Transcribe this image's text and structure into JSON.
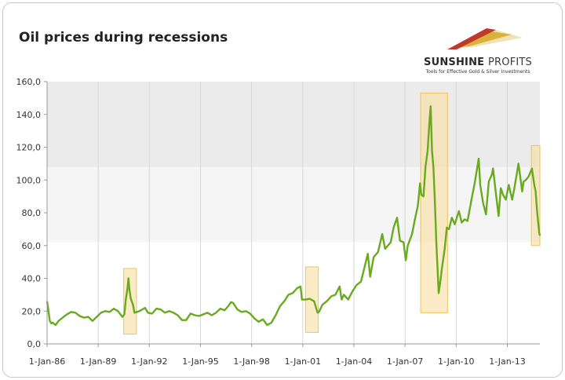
{
  "brand": {
    "name_bold": "SUNSHINE",
    "name_thin": "PROFITS",
    "tagline": "Tools for Effective Gold & Silver Investments",
    "colors": {
      "red": "#c0392b",
      "gold": "#d4a017",
      "ivory": "#efe2b8"
    }
  },
  "chart_data": {
    "type": "line",
    "title": "Oil prices during recessions",
    "xlabel": "",
    "ylabel": "",
    "x_start": "1986-01-01",
    "x_end": "2014-11-30",
    "ylim": [
      0,
      160
    ],
    "yticks": [
      0,
      20,
      40,
      60,
      80,
      100,
      120,
      140,
      160
    ],
    "ytick_labels": [
      "0,0",
      "20,0",
      "40,0",
      "60,0",
      "80,0",
      "100,0",
      "120,0",
      "140,0",
      "160,0"
    ],
    "xtick_labels": [
      "1-Jan-86",
      "1-Jan-89",
      "1-Jan-92",
      "1-Jan-95",
      "1-Jan-98",
      "1-Jan-01",
      "1-Jan-04",
      "1-Jan-07",
      "1-Jan-10",
      "1-Jan-13"
    ],
    "xtick_dates": [
      "1986-01-01",
      "1989-01-01",
      "1992-01-01",
      "1995-01-01",
      "1998-01-01",
      "2001-01-01",
      "2004-01-01",
      "2007-01-01",
      "2010-01-01",
      "2013-01-01"
    ],
    "grid": "vertical",
    "series": [
      {
        "color": "#6aaa1e",
        "points": [
          [
            "1986-01-01",
            26
          ],
          [
            "1986-02-01",
            20
          ],
          [
            "1986-03-01",
            14
          ],
          [
            "1986-04-01",
            12.5
          ],
          [
            "1986-05-01",
            13
          ],
          [
            "1986-07-01",
            11.5
          ],
          [
            "1986-09-01",
            14
          ],
          [
            "1986-12-01",
            16
          ],
          [
            "1987-03-01",
            18
          ],
          [
            "1987-06-01",
            19.5
          ],
          [
            "1987-09-01",
            19
          ],
          [
            "1987-12-01",
            17
          ],
          [
            "1988-03-01",
            16
          ],
          [
            "1988-06-01",
            16.5
          ],
          [
            "1988-09-01",
            14
          ],
          [
            "1988-12-01",
            16.5
          ],
          [
            "1989-03-01",
            19
          ],
          [
            "1989-06-01",
            20
          ],
          [
            "1989-09-01",
            19.5
          ],
          [
            "1989-12-01",
            21.5
          ],
          [
            "1990-03-01",
            20
          ],
          [
            "1990-06-01",
            16.5
          ],
          [
            "1990-07-15",
            18
          ],
          [
            "1990-08-15",
            27
          ],
          [
            "1990-09-15",
            33
          ],
          [
            "1990-10-10",
            40
          ],
          [
            "1990-11-01",
            33
          ],
          [
            "1990-12-01",
            27.5
          ],
          [
            "1991-01-15",
            24
          ],
          [
            "1991-02-15",
            19
          ],
          [
            "1991-06-01",
            20
          ],
          [
            "1991-10-01",
            22
          ],
          [
            "1991-12-01",
            19
          ],
          [
            "1992-03-01",
            18.5
          ],
          [
            "1992-06-01",
            21.5
          ],
          [
            "1992-09-01",
            21
          ],
          [
            "1992-12-01",
            19
          ],
          [
            "1993-03-01",
            20
          ],
          [
            "1993-06-01",
            19
          ],
          [
            "1993-09-01",
            17.5
          ],
          [
            "1993-12-01",
            14.5
          ],
          [
            "1994-03-01",
            14.5
          ],
          [
            "1994-06-01",
            18.5
          ],
          [
            "1994-09-01",
            17.5
          ],
          [
            "1994-12-01",
            17
          ],
          [
            "1995-03-01",
            18
          ],
          [
            "1995-06-01",
            19
          ],
          [
            "1995-09-01",
            17.5
          ],
          [
            "1995-12-01",
            19
          ],
          [
            "1996-03-01",
            21.5
          ],
          [
            "1996-06-01",
            20.5
          ],
          [
            "1996-09-01",
            23.5
          ],
          [
            "1996-10-15",
            25.5
          ],
          [
            "1996-12-01",
            25
          ],
          [
            "1997-03-01",
            21
          ],
          [
            "1997-06-01",
            19.5
          ],
          [
            "1997-09-01",
            20
          ],
          [
            "1997-12-01",
            18.5
          ],
          [
            "1998-03-01",
            15.5
          ],
          [
            "1998-06-01",
            13.5
          ],
          [
            "1998-09-01",
            15
          ],
          [
            "1998-12-01",
            11.5
          ],
          [
            "1999-03-01",
            13
          ],
          [
            "1999-06-01",
            17.5
          ],
          [
            "1999-09-01",
            23
          ],
          [
            "1999-12-01",
            26
          ],
          [
            "2000-03-01",
            30
          ],
          [
            "2000-06-01",
            31
          ],
          [
            "2000-09-01",
            34
          ],
          [
            "2000-11-15",
            35
          ],
          [
            "2000-12-15",
            27
          ],
          [
            "2001-03-01",
            27
          ],
          [
            "2001-06-01",
            27.5
          ],
          [
            "2001-09-01",
            26
          ],
          [
            "2001-11-15",
            19
          ],
          [
            "2001-12-15",
            19.5
          ],
          [
            "2002-03-01",
            24
          ],
          [
            "2002-06-01",
            26
          ],
          [
            "2002-09-01",
            29
          ],
          [
            "2002-12-01",
            30
          ],
          [
            "2003-03-01",
            35
          ],
          [
            "2003-04-15",
            27
          ],
          [
            "2003-06-01",
            30
          ],
          [
            "2003-09-01",
            27
          ],
          [
            "2003-12-01",
            32
          ],
          [
            "2004-03-01",
            36
          ],
          [
            "2004-06-01",
            38
          ],
          [
            "2004-08-01",
            45
          ],
          [
            "2004-10-25",
            55
          ],
          [
            "2004-12-15",
            41
          ],
          [
            "2005-03-01",
            53
          ],
          [
            "2005-06-01",
            56
          ],
          [
            "2005-08-30",
            67
          ],
          [
            "2005-11-01",
            58
          ],
          [
            "2005-12-01",
            59
          ],
          [
            "2006-03-01",
            62
          ],
          [
            "2006-05-01",
            71
          ],
          [
            "2006-07-15",
            77
          ],
          [
            "2006-09-15",
            63
          ],
          [
            "2006-12-01",
            62
          ],
          [
            "2007-01-18",
            51
          ],
          [
            "2007-03-01",
            60
          ],
          [
            "2007-06-01",
            67
          ],
          [
            "2007-08-01",
            76
          ],
          [
            "2007-10-01",
            84
          ],
          [
            "2007-11-20",
            98
          ],
          [
            "2007-12-15",
            91
          ],
          [
            "2008-02-01",
            90
          ],
          [
            "2008-03-15",
            108
          ],
          [
            "2008-05-01",
            118
          ],
          [
            "2008-06-01",
            133
          ],
          [
            "2008-07-03",
            145
          ],
          [
            "2008-08-01",
            118
          ],
          [
            "2008-09-01",
            108
          ],
          [
            "2008-10-01",
            88
          ],
          [
            "2008-11-01",
            62
          ],
          [
            "2008-12-01",
            44
          ],
          [
            "2008-12-22",
            31
          ],
          [
            "2009-02-01",
            39
          ],
          [
            "2009-03-01",
            46
          ],
          [
            "2009-05-01",
            58
          ],
          [
            "2009-06-15",
            71
          ],
          [
            "2009-08-01",
            70
          ],
          [
            "2009-10-01",
            77
          ],
          [
            "2009-12-01",
            73
          ],
          [
            "2010-03-01",
            81
          ],
          [
            "2010-05-01",
            74
          ],
          [
            "2010-07-01",
            76
          ],
          [
            "2010-09-01",
            75
          ],
          [
            "2010-12-01",
            89
          ],
          [
            "2011-02-01",
            98
          ],
          [
            "2011-04-29",
            113
          ],
          [
            "2011-06-01",
            97
          ],
          [
            "2011-08-01",
            86
          ],
          [
            "2011-10-01",
            79
          ],
          [
            "2011-12-01",
            99
          ],
          [
            "2012-02-01",
            103
          ],
          [
            "2012-03-01",
            107
          ],
          [
            "2012-05-01",
            92
          ],
          [
            "2012-06-28",
            78
          ],
          [
            "2012-08-15",
            95
          ],
          [
            "2012-10-01",
            91
          ],
          [
            "2012-12-01",
            88
          ],
          [
            "2013-02-01",
            97
          ],
          [
            "2013-04-15",
            88
          ],
          [
            "2013-06-01",
            95
          ],
          [
            "2013-08-28",
            110
          ],
          [
            "2013-10-01",
            103
          ],
          [
            "2013-11-15",
            93
          ],
          [
            "2013-12-15",
            99
          ],
          [
            "2014-02-01",
            100
          ],
          [
            "2014-04-01",
            102
          ],
          [
            "2014-06-13",
            107
          ],
          [
            "2014-08-01",
            97
          ],
          [
            "2014-09-01",
            93
          ],
          [
            "2014-10-01",
            81
          ],
          [
            "2014-11-15",
            68
          ],
          [
            "2014-11-30",
            66
          ]
        ]
      }
    ],
    "recession_boxes": [
      {
        "start": "1990-07-01",
        "end": "1991-03-31",
        "y_low": 6,
        "y_high": 46
      },
      {
        "start": "2001-03-01",
        "end": "2001-11-30",
        "y_low": 7,
        "y_high": 47
      },
      {
        "start": "2007-12-01",
        "end": "2009-06-30",
        "y_low": 19,
        "y_high": 153
      },
      {
        "start": "2014-06-01",
        "end": "2014-11-30",
        "y_low": 60,
        "y_high": 121
      }
    ],
    "background_bands": [
      {
        "y_low": 108,
        "y_high": 160,
        "color": "#ebebeb"
      },
      {
        "y_low": 62,
        "y_high": 108,
        "color": "#f5f5f5"
      }
    ]
  }
}
